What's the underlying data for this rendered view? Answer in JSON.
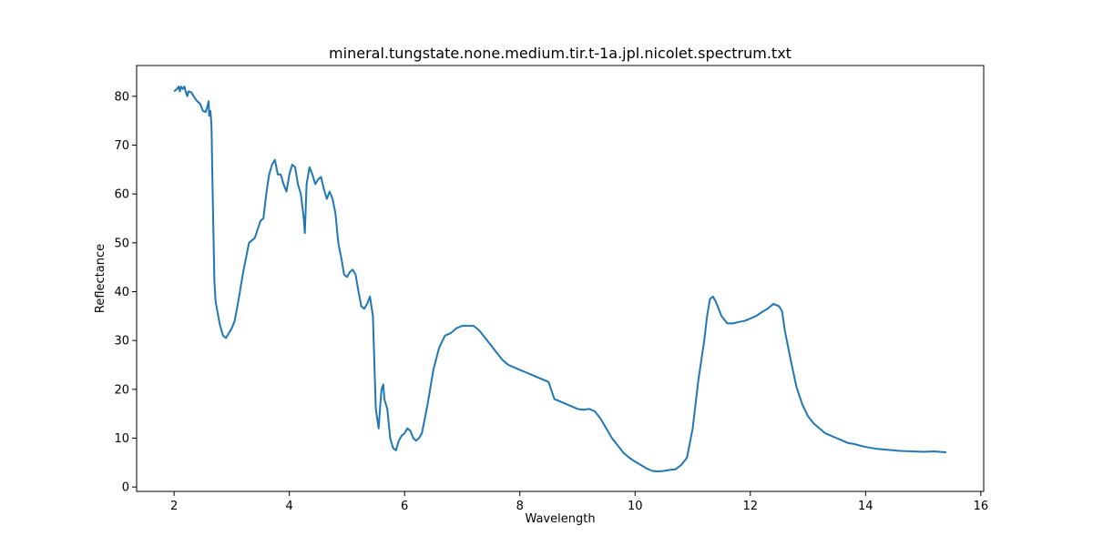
{
  "chart_data": {
    "type": "line",
    "title": "mineral.tungstate.none.medium.tir.t-1a.jpl.nicolet.spectrum.txt",
    "xlabel": "Wavelength",
    "ylabel": "Reflectance",
    "xlim": [
      1.35,
      16.05
    ],
    "ylim": [
      -0.9,
      86.3
    ],
    "xticks": [
      2,
      4,
      6,
      8,
      10,
      12,
      14,
      16
    ],
    "yticks": [
      0,
      10,
      20,
      30,
      40,
      50,
      60,
      70,
      80
    ],
    "grid": false,
    "series_color": "#1f77b4",
    "series": [
      {
        "x": [
          2.0,
          2.05,
          2.08,
          2.1,
          2.12,
          2.15,
          2.18,
          2.2,
          2.23,
          2.25,
          2.3,
          2.35,
          2.4,
          2.45,
          2.5,
          2.55,
          2.58,
          2.6,
          2.61,
          2.63,
          2.65,
          2.67,
          2.7,
          2.72,
          2.75,
          2.8,
          2.85,
          2.9,
          2.95,
          3.0,
          3.05,
          3.1,
          3.2,
          3.3,
          3.4,
          3.5,
          3.55,
          3.6,
          3.65,
          3.7,
          3.75,
          3.8,
          3.85,
          3.9,
          3.95,
          4.0,
          4.05,
          4.1,
          4.15,
          4.2,
          4.25,
          4.27,
          4.3,
          4.35,
          4.4,
          4.45,
          4.5,
          4.55,
          4.6,
          4.65,
          4.7,
          4.75,
          4.8,
          4.85,
          4.9,
          4.95,
          5.0,
          5.05,
          5.1,
          5.15,
          5.2,
          5.25,
          5.3,
          5.35,
          5.4,
          5.45,
          5.5,
          5.55,
          5.58,
          5.6,
          5.63,
          5.65,
          5.7,
          5.75,
          5.8,
          5.85,
          5.9,
          5.95,
          6.0,
          6.05,
          6.1,
          6.15,
          6.2,
          6.25,
          6.3,
          6.4,
          6.5,
          6.6,
          6.7,
          6.8,
          6.9,
          7.0,
          7.1,
          7.2,
          7.3,
          7.4,
          7.5,
          7.6,
          7.7,
          7.8,
          7.9,
          8.0,
          8.1,
          8.2,
          8.3,
          8.4,
          8.5,
          8.6,
          8.7,
          8.8,
          8.9,
          9.0,
          9.1,
          9.2,
          9.3,
          9.4,
          9.5,
          9.6,
          9.7,
          9.8,
          9.9,
          10.0,
          10.1,
          10.2,
          10.3,
          10.4,
          10.5,
          10.6,
          10.7,
          10.8,
          10.9,
          11.0,
          11.1,
          11.2,
          11.25,
          11.3,
          11.35,
          11.4,
          11.5,
          11.6,
          11.7,
          11.8,
          11.9,
          12.0,
          12.1,
          12.2,
          12.3,
          12.4,
          12.5,
          12.55,
          12.6,
          12.7,
          12.8,
          12.9,
          13.0,
          13.1,
          13.2,
          13.3,
          13.4,
          13.5,
          13.6,
          13.7,
          13.8,
          13.9,
          14.0,
          14.2,
          14.4,
          14.6,
          14.8,
          15.0,
          15.2,
          15.4
        ],
        "y": [
          81.0,
          81.5,
          82.0,
          81.0,
          82.0,
          81.5,
          82.0,
          81.0,
          80.0,
          81.0,
          80.8,
          79.8,
          79.0,
          78.5,
          77.0,
          76.8,
          78.0,
          79.0,
          76.0,
          77.0,
          74.0,
          60.0,
          42.0,
          38.0,
          36.0,
          33.0,
          31.0,
          30.5,
          31.5,
          32.5,
          34.0,
          37.0,
          44.0,
          50.0,
          51.0,
          54.5,
          55.0,
          60.0,
          64.0,
          66.0,
          67.0,
          64.0,
          64.0,
          62.0,
          60.5,
          64.0,
          66.0,
          65.5,
          62.0,
          60.0,
          55.0,
          52.0,
          62.0,
          65.5,
          64.0,
          62.0,
          63.0,
          63.5,
          61.0,
          59.0,
          60.5,
          59.0,
          56.0,
          50.0,
          47.0,
          43.5,
          43.0,
          44.0,
          44.5,
          43.5,
          40.0,
          37.0,
          36.5,
          37.5,
          39.0,
          35.0,
          16.0,
          12.0,
          17.0,
          20.0,
          21.0,
          18.0,
          16.0,
          10.0,
          8.0,
          7.5,
          9.5,
          10.5,
          11.0,
          12.0,
          11.5,
          10.0,
          9.5,
          10.0,
          11.0,
          17.0,
          24.0,
          28.5,
          31.0,
          31.5,
          32.5,
          33.0,
          33.0,
          33.0,
          32.0,
          30.5,
          29.0,
          27.5,
          26.0,
          25.0,
          24.5,
          24.0,
          23.5,
          23.0,
          22.5,
          22.0,
          21.5,
          18.0,
          17.5,
          17.0,
          16.5,
          16.0,
          15.8,
          16.0,
          15.5,
          14.0,
          12.0,
          10.0,
          8.5,
          7.0,
          6.0,
          5.2,
          4.5,
          3.8,
          3.3,
          3.2,
          3.3,
          3.5,
          3.6,
          4.5,
          6.0,
          12.0,
          22.0,
          30.0,
          35.0,
          38.5,
          39.0,
          38.0,
          35.0,
          33.5,
          33.5,
          33.8,
          34.0,
          34.5,
          35.0,
          35.8,
          36.5,
          37.5,
          37.0,
          36.0,
          32.0,
          26.0,
          20.5,
          17.0,
          14.5,
          13.0,
          12.0,
          11.0,
          10.5,
          10.0,
          9.5,
          9.0,
          8.8,
          8.5,
          8.2,
          7.8,
          7.6,
          7.4,
          7.3,
          7.2,
          7.3,
          7.1
        ]
      }
    ]
  }
}
